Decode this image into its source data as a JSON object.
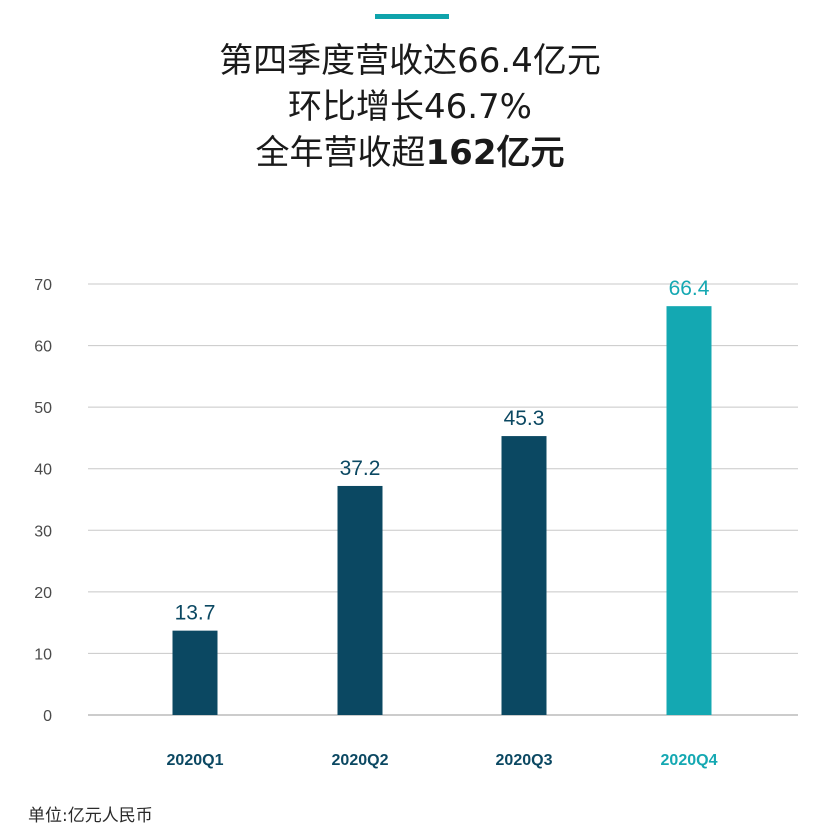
{
  "headline": {
    "line1": "第四季度营收达66.4亿元",
    "line2": "环比增长46.7%",
    "line3_regular": "全年营收超",
    "line3_bold": "162亿元"
  },
  "colors": {
    "accent": "#0fa3ab",
    "bar_dark": "#0b4862",
    "bar_highlight": "#14a8b2",
    "grid": "#c8c8c8",
    "axis_text": "#4a4a4a",
    "category_dark": "#0b4862",
    "category_highlight": "#14a8b2"
  },
  "chart_data": {
    "type": "bar",
    "categories": [
      "2020Q1",
      "2020Q2",
      "2020Q3",
      "2020Q4"
    ],
    "values": [
      13.7,
      37.2,
      45.3,
      66.4
    ],
    "data_labels": [
      "13.7",
      "37.2",
      "45.3",
      "66.4"
    ],
    "highlight_index": 3,
    "ylim": [
      0,
      70
    ],
    "yticks": [
      0,
      10,
      20,
      30,
      40,
      50,
      60,
      70
    ],
    "grid": true
  },
  "footer": {
    "unit_note": "单位:亿元人民币"
  }
}
